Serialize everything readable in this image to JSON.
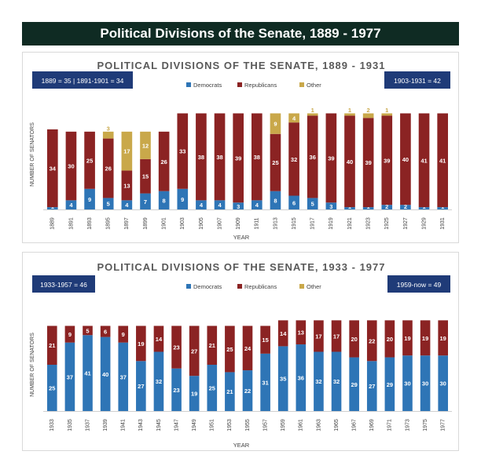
{
  "banner": {
    "title": "Political Divisions of the Senate, 1889 - 1977"
  },
  "colors": {
    "democrats": "#2e75b6",
    "republicans": "#8b2323",
    "other": "#c9a84a",
    "badge": "#1f3b78",
    "banner": "#0f2b23"
  },
  "chart_data": [
    {
      "type": "bar",
      "stacked": true,
      "title": "POLITICAL DIVISIONS OF THE SENATE, 1889 - 1931",
      "xlabel": "YEAR",
      "ylabel": "NUMBER OF SENATORS",
      "ylim": [
        0,
        48
      ],
      "grid": false,
      "legend_position": "top-center",
      "badges": [
        "1889 = 35 | 1891-1901 = 34",
        "1903-1931 = 42"
      ],
      "categories": [
        "1889",
        "1891",
        "1893",
        "1895",
        "1897",
        "1899",
        "1901",
        "1903",
        "1905",
        "1907",
        "1909",
        "1911",
        "1913",
        "1915",
        "1917",
        "1919",
        "1921",
        "1923",
        "1925",
        "1927",
        "1929",
        "1931"
      ],
      "series": [
        {
          "name": "Democrats",
          "values": [
            1,
            4,
            9,
            5,
            4,
            7,
            8,
            9,
            4,
            4,
            3,
            4,
            8,
            6,
            5,
            3,
            1,
            1,
            2,
            2,
            1,
            1
          ]
        },
        {
          "name": "Republicans",
          "values": [
            34,
            30,
            25,
            26,
            13,
            15,
            26,
            33,
            38,
            38,
            39,
            38,
            25,
            32,
            36,
            39,
            40,
            39,
            39,
            40,
            41,
            41
          ]
        },
        {
          "name": "Other",
          "values": [
            0,
            0,
            0,
            3,
            17,
            12,
            0,
            0,
            0,
            0,
            0,
            0,
            9,
            4,
            1,
            0,
            1,
            2,
            1,
            0,
            0,
            0
          ]
        }
      ]
    },
    {
      "type": "bar",
      "stacked": true,
      "title": "POLITICAL DIVISIONS OF THE SENATE, 1933 - 1977",
      "xlabel": "YEAR",
      "ylabel": "NUMBER OF SENATORS",
      "ylim": [
        0,
        50
      ],
      "grid": false,
      "legend_position": "top-center",
      "badges": [
        "1933-1957 = 46",
        "1959-now = 49"
      ],
      "categories": [
        "1933",
        "1935",
        "1937",
        "1939",
        "1941",
        "1943",
        "1945",
        "1947",
        "1949",
        "1951",
        "1953",
        "1955",
        "1957",
        "1959",
        "1961",
        "1963",
        "1965",
        "1967",
        "1969",
        "1971",
        "1973",
        "1975",
        "1977"
      ],
      "series": [
        {
          "name": "Democrats",
          "values": [
            25,
            37,
            41,
            40,
            37,
            27,
            32,
            23,
            19,
            25,
            21,
            22,
            31,
            35,
            36,
            32,
            32,
            29,
            27,
            29,
            30,
            30,
            30
          ]
        },
        {
          "name": "Republicans",
          "values": [
            21,
            9,
            5,
            6,
            9,
            19,
            14,
            23,
            27,
            21,
            25,
            24,
            15,
            14,
            13,
            17,
            17,
            20,
            22,
            20,
            19,
            19,
            19
          ]
        },
        {
          "name": "Other",
          "values": [
            0,
            0,
            0,
            0,
            0,
            0,
            0,
            0,
            0,
            0,
            0,
            0,
            0,
            0,
            0,
            0,
            0,
            0,
            0,
            0,
            0,
            0,
            0
          ]
        }
      ]
    }
  ]
}
